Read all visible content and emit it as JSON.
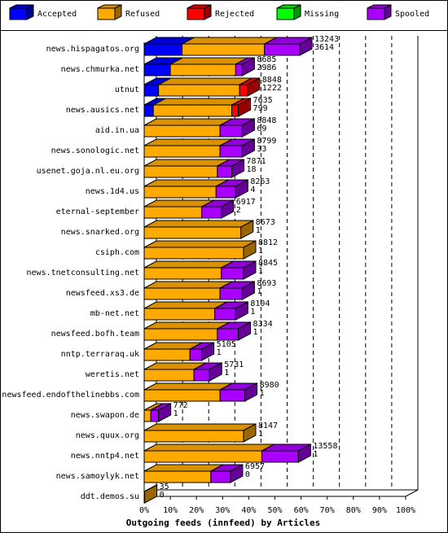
{
  "chart_data": {
    "type": "bar",
    "stacked": true,
    "orientation": "horizontal",
    "style": "3d",
    "xlabel": "Outgoing feeds (innfeed) by Articles",
    "x_ticks": [
      "0%",
      "10%",
      "20%",
      "30%",
      "40%",
      "50%",
      "60%",
      "70%",
      "80%",
      "90%",
      "100%"
    ],
    "xlim": [
      0,
      100
    ],
    "legend_position": "top",
    "series": [
      {
        "name": "Accepted",
        "color": "#0000ff"
      },
      {
        "name": "Refused",
        "color": "#ffaa00"
      },
      {
        "name": "Rejected",
        "color": "#ff0000"
      },
      {
        "name": "Missing",
        "color": "#00ff00"
      },
      {
        "name": "Spooled",
        "color": "#aa00ff"
      }
    ],
    "rows": [
      {
        "label": "news.hispagatos.org",
        "offered": "13243",
        "second": "3614",
        "pct": [
          14.5,
          31.5,
          0,
          0,
          13.5
        ]
      },
      {
        "label": "news.chmurka.net",
        "offered": "8685",
        "second": "2986",
        "pct": [
          10.0,
          25.0,
          0,
          0,
          2.5
        ]
      },
      {
        "label": "utnut",
        "offered": "8848",
        "second": "1222",
        "pct": [
          5.5,
          31.0,
          3.0,
          0,
          0
        ]
      },
      {
        "label": "news.ausics.net",
        "offered": "7635",
        "second": "799",
        "pct": [
          3.5,
          30.0,
          2.5,
          0,
          0
        ]
      },
      {
        "label": "aid.in.ua",
        "offered": "8848",
        "second": "69",
        "pct": [
          0,
          29.0,
          0,
          0,
          8.5
        ]
      },
      {
        "label": "news.sonologic.net",
        "offered": "8799",
        "second": "33",
        "pct": [
          0,
          29.0,
          0,
          0,
          8.5
        ]
      },
      {
        "label": "usenet.goja.nl.eu.org",
        "offered": "7871",
        "second": "18",
        "pct": [
          0,
          28.0,
          0,
          0,
          5.5
        ]
      },
      {
        "label": "news.1d4.us",
        "offered": "8263",
        "second": "4",
        "pct": [
          0,
          27.5,
          0,
          0,
          7.5
        ]
      },
      {
        "label": "eternal-september",
        "offered": "6917",
        "second": "2",
        "pct": [
          0,
          22.0,
          0,
          0,
          7.5
        ]
      },
      {
        "label": "news.snarked.org",
        "offered": "8673",
        "second": "1",
        "pct": [
          0,
          37.0,
          0,
          0,
          0
        ]
      },
      {
        "label": "csiph.com",
        "offered": "8812",
        "second": "1",
        "pct": [
          0,
          38.0,
          0,
          0,
          0
        ]
      },
      {
        "label": "news.tnetconsulting.net",
        "offered": "8845",
        "second": "1",
        "pct": [
          0,
          29.5,
          0,
          0,
          8.5
        ]
      },
      {
        "label": "newsfeed.xs3.de",
        "offered": "8693",
        "second": "1",
        "pct": [
          0,
          29.0,
          0,
          0,
          8.5
        ]
      },
      {
        "label": "mb-net.net",
        "offered": "8104",
        "second": "1",
        "pct": [
          0,
          27.0,
          0,
          0,
          8.0
        ]
      },
      {
        "label": "newsfeed.bofh.team",
        "offered": "8334",
        "second": "1",
        "pct": [
          0,
          28.0,
          0,
          0,
          8.0
        ]
      },
      {
        "label": "nntp.terraraq.uk",
        "offered": "5105",
        "second": "1",
        "pct": [
          0,
          17.5,
          0,
          0,
          4.5
        ]
      },
      {
        "label": "weretis.net",
        "offered": "5731",
        "second": "1",
        "pct": [
          0,
          19.0,
          0,
          0,
          6.0
        ]
      },
      {
        "label": "newsfeed.endofthelinebbs.com",
        "offered": "8980",
        "second": "1",
        "pct": [
          0,
          29.0,
          0,
          0,
          9.5
        ]
      },
      {
        "label": "news.swapon.de",
        "offered": "772",
        "second": "1",
        "pct": [
          0,
          2.5,
          0,
          0,
          3.0
        ]
      },
      {
        "label": "news.quux.org",
        "offered": "8147",
        "second": "1",
        "pct": [
          0,
          38.0,
          0,
          0,
          0
        ]
      },
      {
        "label": "news.nntp4.net",
        "offered": "13558",
        "second": "1",
        "pct": [
          0,
          45.0,
          0,
          0,
          14.0
        ]
      },
      {
        "label": "news.samoylyk.net",
        "offered": "6957",
        "second": "0",
        "pct": [
          0,
          25.5,
          0,
          0,
          7.5
        ]
      },
      {
        "label": "ddt.demos.su",
        "offered": "35",
        "second": "0",
        "pct": [
          0,
          0.2,
          0,
          0,
          0
        ]
      }
    ]
  }
}
